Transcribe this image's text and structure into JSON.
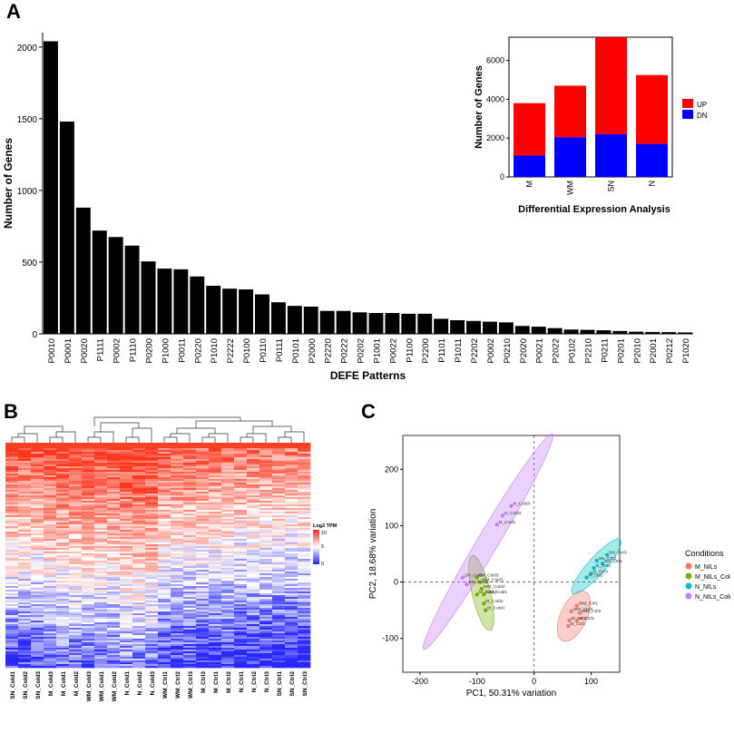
{
  "panel_labels": {
    "a": "A",
    "b": "B",
    "c": "C"
  },
  "colors": {
    "bar": "#000000",
    "up": "#ff0000",
    "dn": "#0000ff",
    "pca": [
      "#f8766d",
      "#7cae00",
      "#00bfc4",
      "#c77cff"
    ]
  },
  "chart_data": [
    {
      "id": "defe",
      "type": "bar",
      "title": "",
      "xlabel": "DEFE Patterns",
      "ylabel": "Number of Genes",
      "ylim": [
        0,
        2100
      ],
      "yticks": [
        0,
        500,
        1000,
        1500,
        2000
      ],
      "categories": [
        "P0010",
        "P0001",
        "P0020",
        "P1111",
        "P0002",
        "P1110",
        "P0200",
        "P1000",
        "P0011",
        "P0220",
        "P1010",
        "P2222",
        "P0100",
        "P0110",
        "P0111",
        "P0101",
        "P2000",
        "P2220",
        "P0222",
        "P0202",
        "P1001",
        "P0022",
        "P1100",
        "P2200",
        "P1101",
        "P1011",
        "P2202",
        "P0002",
        "P0210",
        "P2020",
        "P0021",
        "P2022",
        "P0102",
        "P2210",
        "P0211",
        "P0201",
        "P2010",
        "P2001",
        "P0212",
        "P1020"
      ],
      "values": [
        2040,
        1480,
        880,
        720,
        675,
        615,
        505,
        455,
        450,
        400,
        335,
        315,
        310,
        275,
        220,
        195,
        190,
        160,
        160,
        150,
        145,
        145,
        140,
        140,
        105,
        95,
        90,
        85,
        80,
        55,
        50,
        40,
        30,
        28,
        25,
        20,
        15,
        13,
        12,
        10
      ]
    },
    {
      "id": "de-inset",
      "type": "bar",
      "stacked": true,
      "title": "",
      "xlabel": "Differential Expression Analysis",
      "ylabel": "Number of Genes",
      "ylim": [
        0,
        7200
      ],
      "yticks": [
        0,
        2000,
        4000,
        6000
      ],
      "categories": [
        "M",
        "WM",
        "SN",
        "N"
      ],
      "series": [
        {
          "name": "DN",
          "values": [
            1100,
            2050,
            2200,
            1700
          ]
        },
        {
          "name": "UP",
          "values": [
            2700,
            2650,
            5000,
            3550
          ]
        }
      ],
      "legend": [
        "UP",
        "DN"
      ]
    },
    {
      "id": "heatmap",
      "type": "heatmap",
      "legend_title": "Log2 TPM",
      "legend_ticks": [
        "10",
        "5",
        "0"
      ],
      "columns": [
        "SN_Cold1",
        "SN_Cold2",
        "SN_Cold3",
        "M_Cold3",
        "M_Cold1",
        "M_Cold2",
        "WM_Cold3",
        "WM_Cold1",
        "WM_Cold2",
        "N_Cold1",
        "N_Cold2",
        "N_Cold3",
        "WM_Ctrl1",
        "WM_Ctrl2",
        "WM_Ctrl3",
        "M_Ctrl3",
        "M_Ctrl1",
        "M_Ctrl2",
        "N_Ctrl1",
        "N_Ctrl2",
        "N_Ctrl3",
        "SN_Ctrl1",
        "SN_Ctrl2",
        "SN_Ctrl3"
      ]
    },
    {
      "id": "pca",
      "type": "scatter",
      "xlabel": "PC1, 50.31% variation",
      "ylabel": "PC2, 18.68% variation",
      "xlim": [
        -230,
        150
      ],
      "ylim": [
        -160,
        260
      ],
      "xticks": [
        -200,
        -100,
        0,
        100
      ],
      "yticks": [
        -100,
        0,
        100,
        200
      ],
      "legend_title": "Conditions",
      "series": [
        {
          "name": "M_NILs",
          "points": [
            {
              "label": "WM_Ctrl1",
              "x": 75,
              "y": -42
            },
            {
              "label": "WM_Ctrl3",
              "x": 65,
              "y": -52
            },
            {
              "label": "WM_Ctrl2",
              "x": 80,
              "y": -55
            },
            {
              "label": "M_Ctrl2",
              "x": 62,
              "y": -68
            },
            {
              "label": "M_Ctrl3",
              "x": 75,
              "y": -68
            },
            {
              "label": "M_Ctrl1",
              "x": 60,
              "y": -78
            }
          ]
        },
        {
          "name": "M_NILs_Cold",
          "points": [
            {
              "label": "SN_Cold3",
              "x": -100,
              "y": 8
            },
            {
              "label": "WM_Cold3",
              "x": -95,
              "y": 0
            },
            {
              "label": "WM_Cold2",
              "x": -92,
              "y": -12
            },
            {
              "label": "M_Cold3",
              "x": -100,
              "y": -22
            },
            {
              "label": "WM_Cold1",
              "x": -88,
              "y": -22
            },
            {
              "label": "M_Cold2",
              "x": -88,
              "y": -38
            },
            {
              "label": "M_Cold1",
              "x": -85,
              "y": -50
            }
          ]
        },
        {
          "name": "N_NILs",
          "points": [
            {
              "label": "SN_Ctrl3",
              "x": 128,
              "y": 48
            },
            {
              "label": "SN_Ctrl2",
              "x": 110,
              "y": 38
            },
            {
              "label": "SN_Ctrl1",
              "x": 120,
              "y": 33
            },
            {
              "label": "N_Ctrl1",
              "x": 105,
              "y": 25
            },
            {
              "label": "N_Ctrl3",
              "x": 100,
              "y": 15
            },
            {
              "label": "N_Ctrl2",
              "x": 92,
              "y": 8
            }
          ]
        },
        {
          "name": "N_NILs_Cold",
          "points": [
            {
              "label": "N_Cold3",
              "x": -40,
              "y": 135
            },
            {
              "label": "N_Cold2",
              "x": -55,
              "y": 118
            },
            {
              "label": "N_Cold1",
              "x": -65,
              "y": 102
            },
            {
              "label": "SN_Cold2",
              "x": -125,
              "y": 8
            },
            {
              "label": "SN_Cold1",
              "x": -118,
              "y": -4
            }
          ]
        }
      ]
    }
  ]
}
